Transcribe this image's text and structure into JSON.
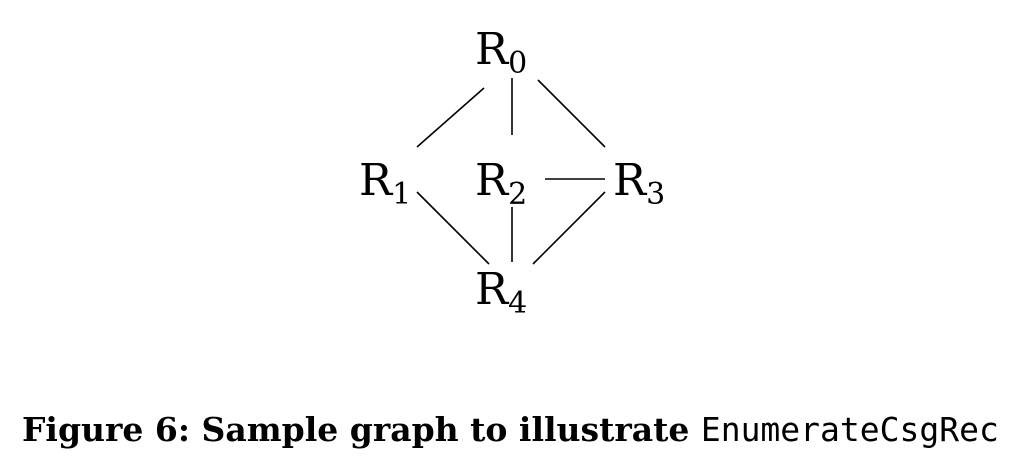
{
  "graph": {
    "nodes": [
      {
        "id": "R0",
        "base": "R",
        "sub": "0"
      },
      {
        "id": "R1",
        "base": "R",
        "sub": "1"
      },
      {
        "id": "R2",
        "base": "R",
        "sub": "2"
      },
      {
        "id": "R3",
        "base": "R",
        "sub": "3"
      },
      {
        "id": "R4",
        "base": "R",
        "sub": "4"
      }
    ],
    "edges": [
      [
        "R0",
        "R1"
      ],
      [
        "R0",
        "R2"
      ],
      [
        "R0",
        "R3"
      ],
      [
        "R2",
        "R3"
      ],
      [
        "R1",
        "R4"
      ],
      [
        "R2",
        "R4"
      ],
      [
        "R3",
        "R4"
      ]
    ]
  },
  "caption": {
    "prefix": "Figure 6: Sample graph to illustrate ",
    "code": "EnumerateCsgRec"
  }
}
